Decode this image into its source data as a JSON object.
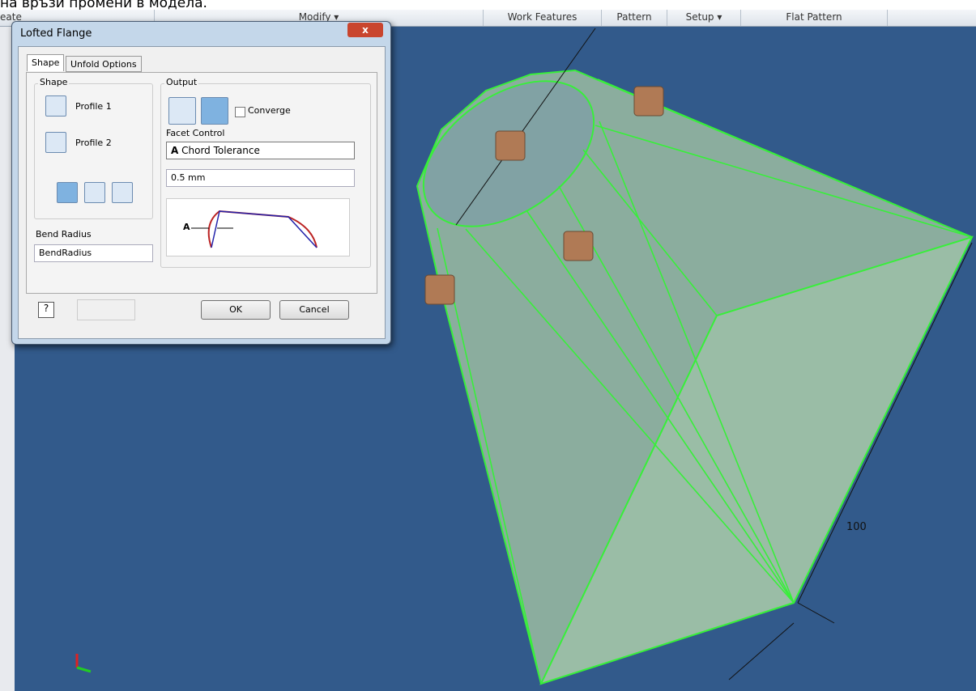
{
  "caption": "на връзи промени в модела.",
  "ribbon": {
    "tabs": [
      "eate",
      "Modify ▾",
      "Work Features",
      "Pattern",
      "Setup ▾",
      "Flat Pattern"
    ]
  },
  "dialog": {
    "title": "Lofted Flange",
    "tabs": [
      "Shape",
      "Unfold Options"
    ],
    "shape_group": {
      "title": "Shape",
      "profile_1": "Profile 1",
      "profile_2": "Profile 2"
    },
    "output_group": {
      "title": "Output",
      "converge": "Converge",
      "facet_control": "Facet Control",
      "facet_icon": "A",
      "facet_option": "Chord Tolerance",
      "tolerance": "0.5 mm",
      "diagram_label": "A"
    },
    "bend_radius": {
      "label": "Bend Radius",
      "value": "BendRadius"
    },
    "buttons": {
      "ok": "OK",
      "cancel": "Cancel"
    }
  },
  "viewport": {
    "dimension": "100"
  }
}
